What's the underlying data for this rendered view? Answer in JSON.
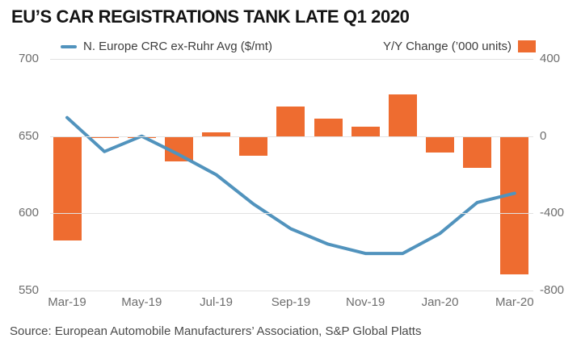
{
  "title": "EU’S CAR REGISTRATIONS TANK LATE Q1 2020",
  "legend": {
    "line_label": "N. Europe CRC ex-Ruhr Avg ($/mt)",
    "bar_label": "Y/Y Change (’000 units)"
  },
  "source": "Source: European Automobile Manufacturers’ Association, S&P Global Platts",
  "colors": {
    "line": "#5193bd",
    "bar": "#ee6c30",
    "grid": "#e2e2e2",
    "axis_text": "#6d6d6d",
    "title_text": "#141414",
    "source_text": "#4a4a4a"
  },
  "chart_data": {
    "type": "combo",
    "categories": [
      "Mar-19",
      "Apr-19",
      "May-19",
      "Jun-19",
      "Jul-19",
      "Aug-19",
      "Sep-19",
      "Oct-19",
      "Nov-19",
      "Dec-19",
      "Jan-20",
      "Feb-20",
      "Mar-20"
    ],
    "x_tick_labels": [
      "Mar-19",
      "May-19",
      "Jul-19",
      "Sep-19",
      "Nov-19",
      "Jan-20",
      "Mar-20"
    ],
    "series": [
      {
        "name": "N. Europe CRC ex-Ruhr Avg ($/mt)",
        "type": "line",
        "axis": "left",
        "values": [
          662,
          640,
          650,
          638,
          625,
          606,
          590,
          580,
          574,
          574,
          587,
          607,
          613
        ]
      },
      {
        "name": "Y/Y Change ('000 units)",
        "type": "bar",
        "axis": "right",
        "values": [
          -540,
          -10,
          -10,
          -130,
          20,
          -100,
          155,
          90,
          50,
          215,
          -85,
          -165,
          -715
        ]
      }
    ],
    "left_axis": {
      "ticks": [
        700,
        650,
        600,
        550
      ],
      "min": 550,
      "max": 700
    },
    "right_axis": {
      "ticks": [
        400,
        0,
        -400,
        -800
      ],
      "min": -800,
      "max": 400
    },
    "grid": "horizontal",
    "legend_position": "top"
  }
}
